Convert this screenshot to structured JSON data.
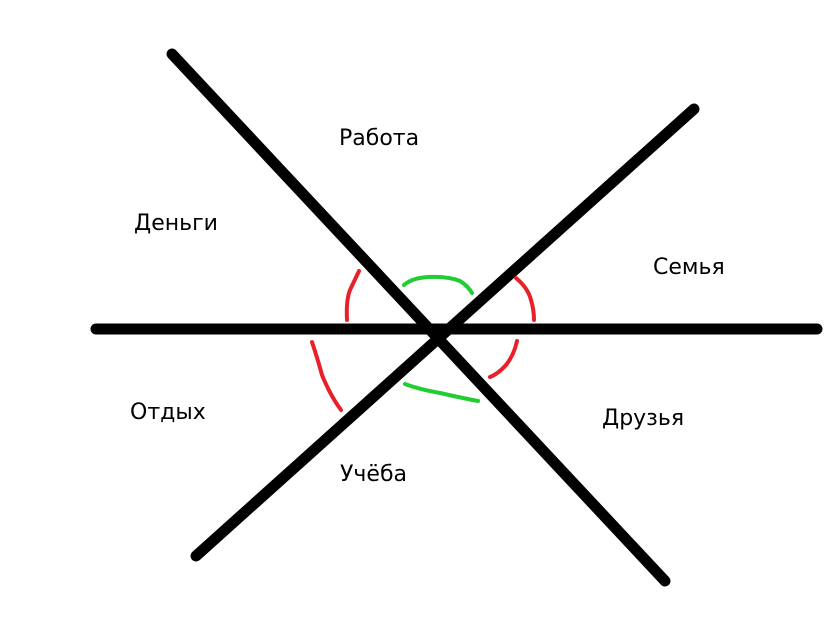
{
  "labels": {
    "rabota": "Работа",
    "dengi": "Деньги",
    "semya": "Семья",
    "otdyh": "Отдых",
    "druzya": "Друзья",
    "ucheba": "Учёба"
  },
  "colors": {
    "lines": "#000000",
    "red_arcs": "#e8202a",
    "green_arcs": "#22cc33",
    "background": "#ffffff"
  }
}
